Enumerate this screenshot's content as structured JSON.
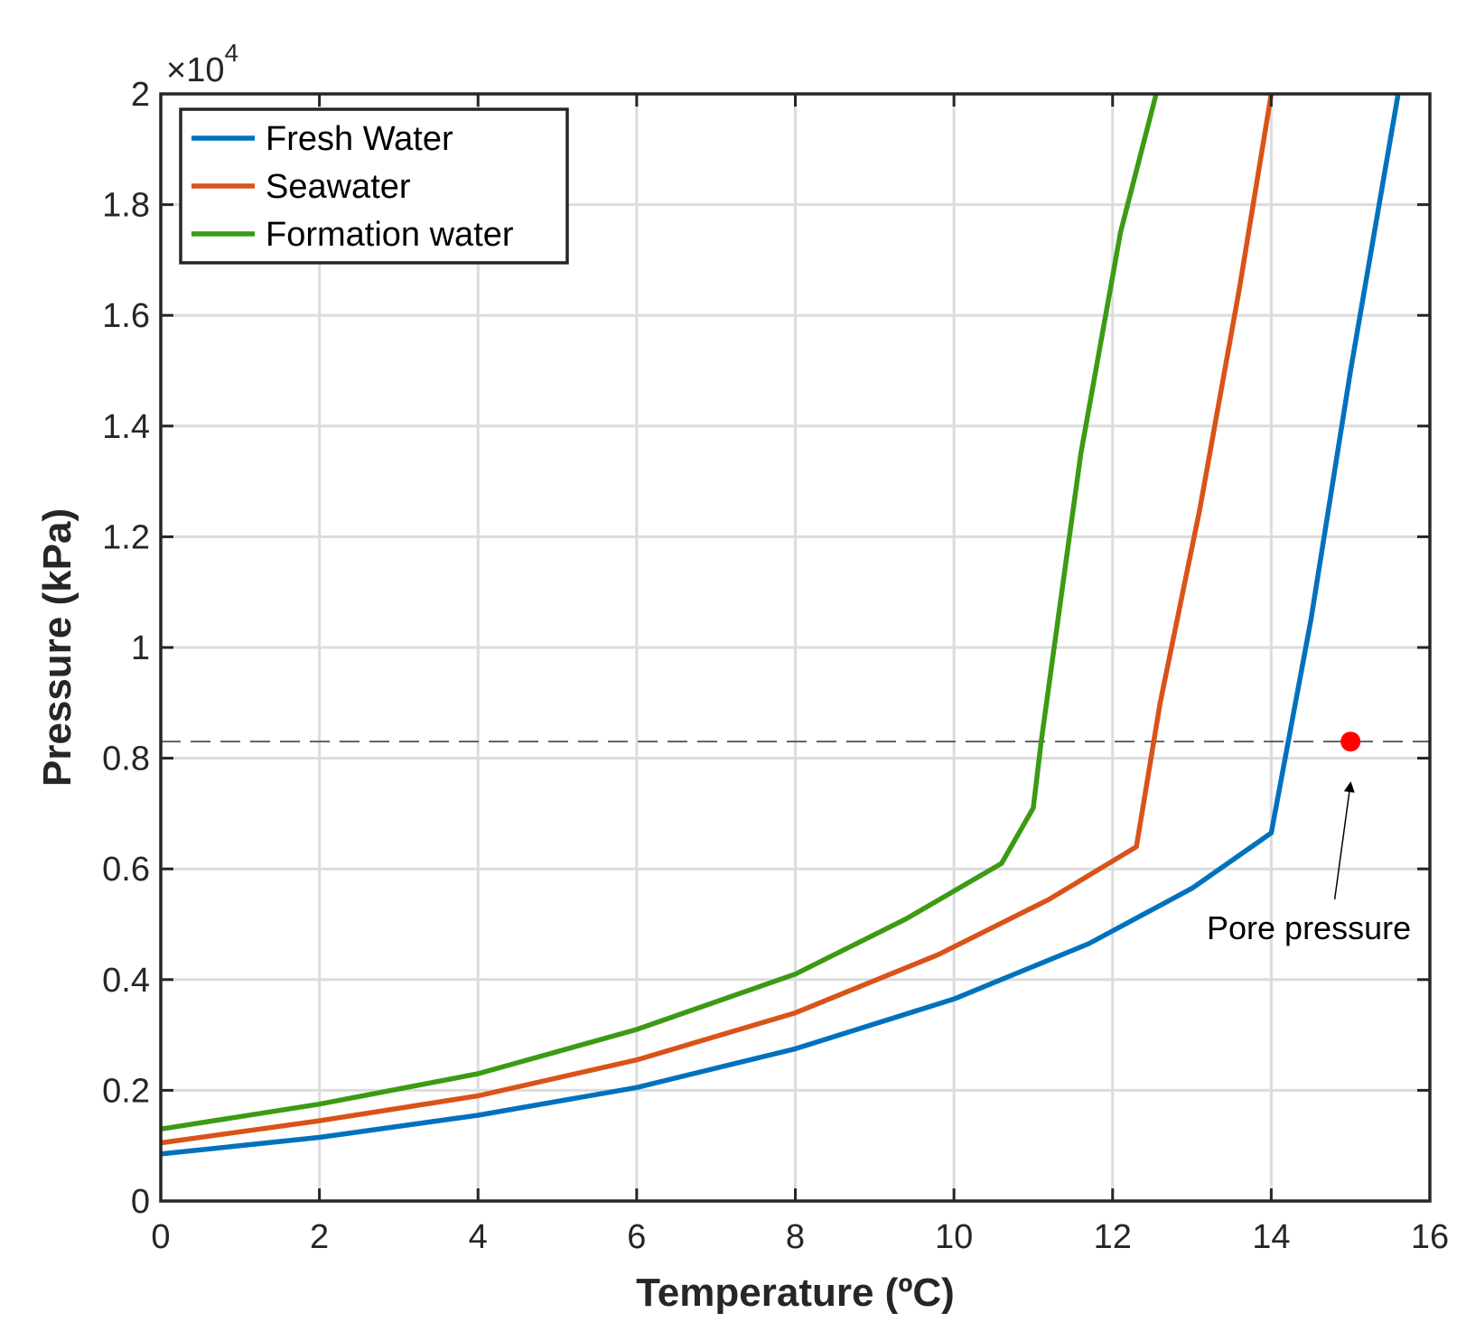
{
  "chart_data": {
    "type": "line",
    "xlabel": "Temperature (ºC)",
    "ylabel": "Pressure (kPa)",
    "xlim": [
      0,
      16
    ],
    "ylim": [
      0,
      20000
    ],
    "xticks": [
      0,
      2,
      4,
      6,
      8,
      10,
      12,
      14,
      16
    ],
    "yticks": [
      0,
      2000,
      4000,
      6000,
      8000,
      10000,
      12000,
      14000,
      16000,
      18000,
      20000
    ],
    "ytick_labels": [
      "0",
      "0.2",
      "0.4",
      "0.6",
      "0.8",
      "1",
      "1.2",
      "1.4",
      "1.6",
      "1.8",
      "2"
    ],
    "yexponent": {
      "base": "×10",
      "power": "4"
    },
    "grid": true,
    "legend_position": "top-left",
    "series": [
      {
        "name": "Fresh Water",
        "color": "#0072BD",
        "x": [
          0,
          2,
          4,
          6,
          8,
          10,
          11.7,
          13,
          14,
          14.5,
          15,
          15.6
        ],
        "y": [
          850,
          1150,
          1550,
          2050,
          2750,
          3650,
          4650,
          5650,
          6650,
          10500,
          15000,
          20000
        ]
      },
      {
        "name": "Seawater",
        "color": "#D95319",
        "x": [
          0,
          2,
          4,
          6,
          8,
          9.8,
          11.2,
          12.3,
          12.6,
          13.1,
          13.6,
          14
        ],
        "y": [
          1050,
          1450,
          1900,
          2550,
          3400,
          4450,
          5450,
          6400,
          9000,
          12500,
          16500,
          20000
        ]
      },
      {
        "name": "Formation water",
        "color": "#3C9A14",
        "x": [
          0,
          2,
          4,
          6,
          8,
          9.4,
          10.6,
          11,
          11.1,
          11.6,
          12.1,
          12.55
        ],
        "y": [
          1300,
          1750,
          2300,
          3100,
          4100,
          5100,
          6100,
          7100,
          8300,
          13500,
          17500,
          20000
        ]
      }
    ],
    "reference_line": {
      "y": 8300,
      "style": "dashed",
      "color": "#555555"
    },
    "points": [
      {
        "x": 15,
        "y": 8300,
        "color": "#ff0000"
      }
    ],
    "annotations": [
      {
        "text": "Pore pressure",
        "arrow_from": {
          "x": 14.8,
          "y": 5450
        },
        "arrow_to": {
          "x": 15,
          "y": 7550
        }
      }
    ]
  }
}
